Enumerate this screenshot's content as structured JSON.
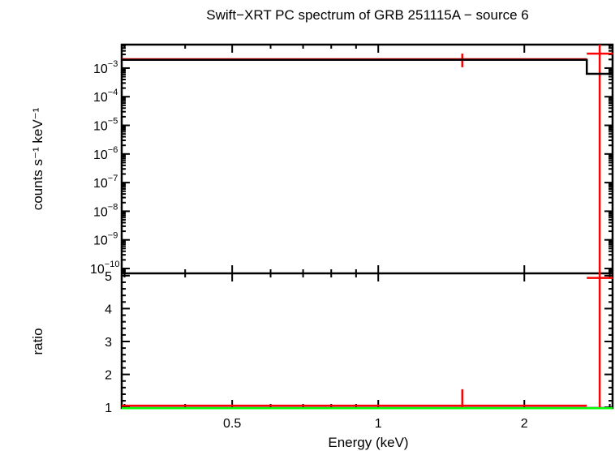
{
  "chart_data": {
    "type": "line",
    "title": "Swift−XRT PC spectrum of GRB 251115A − source 6",
    "xlabel": "Energy (keV)",
    "xscale": "log",
    "xlim": [
      0.296,
      3.04
    ],
    "x_ticks": [
      {
        "v": 0.5,
        "label": "0.5"
      },
      {
        "v": 1,
        "label": "1"
      },
      {
        "v": 2,
        "label": "2"
      }
    ],
    "panels": [
      {
        "name": "spectrum",
        "ylabel": "counts s⁻¹ keV⁻¹",
        "yscale": "log",
        "ylim_log10": [
          -10.17,
          -2.18
        ],
        "y_ticks": [
          {
            "exp": -3,
            "label": "10",
            "sup": "−3"
          },
          {
            "exp": -4,
            "label": "10",
            "sup": "−4"
          },
          {
            "exp": -5,
            "label": "10",
            "sup": "−5"
          },
          {
            "exp": -6,
            "label": "10",
            "sup": "−6"
          },
          {
            "exp": -7,
            "label": "10",
            "sup": "−7"
          },
          {
            "exp": -8,
            "label": "10",
            "sup": "−8"
          },
          {
            "exp": -9,
            "label": "10",
            "sup": "−9"
          },
          {
            "exp": -10,
            "label": "10",
            "sup": "−10"
          }
        ],
        "series": [
          {
            "name": "data",
            "color": "#ff0000",
            "points": [
              {
                "xlo": 0.296,
                "xhi": 2.69,
                "x": 1.49,
                "y": 0.00205,
                "ylo": 0.00107,
                "yhi": 0.0032
              },
              {
                "xlo": 2.69,
                "xhi": 3.04,
                "x": 2.86,
                "y": 0.0032,
                "ylo": 1e-11,
                "yhi": 0.01
              }
            ]
          },
          {
            "name": "model",
            "color": "#000000",
            "steps": [
              {
                "xlo": 0.296,
                "xhi": 2.69,
                "y": 0.00195
              },
              {
                "xlo": 2.69,
                "xhi": 3.04,
                "y": 0.00063
              }
            ]
          }
        ]
      },
      {
        "name": "ratio",
        "ylabel": "ratio",
        "yscale": "linear",
        "ylim": [
          0.98,
          5.07
        ],
        "y_ticks": [
          {
            "v": 1,
            "label": "1"
          },
          {
            "v": 2,
            "label": "2"
          },
          {
            "v": 3,
            "label": "3"
          },
          {
            "v": 4,
            "label": "4"
          },
          {
            "v": 5,
            "label": "5"
          }
        ],
        "series": [
          {
            "name": "ratio",
            "color": "#ff0000",
            "points": [
              {
                "xlo": 0.296,
                "xhi": 2.69,
                "x": 1.49,
                "y": 1.05,
                "ylo": 0.8,
                "yhi": 1.55
              },
              {
                "xlo": 2.69,
                "xhi": 3.04,
                "x": 2.86,
                "y": 4.93,
                "ylo": 0.9,
                "yhi": 6
              }
            ]
          },
          {
            "name": "unity",
            "color": "#00ff00",
            "y": 1.0
          }
        ]
      }
    ]
  }
}
